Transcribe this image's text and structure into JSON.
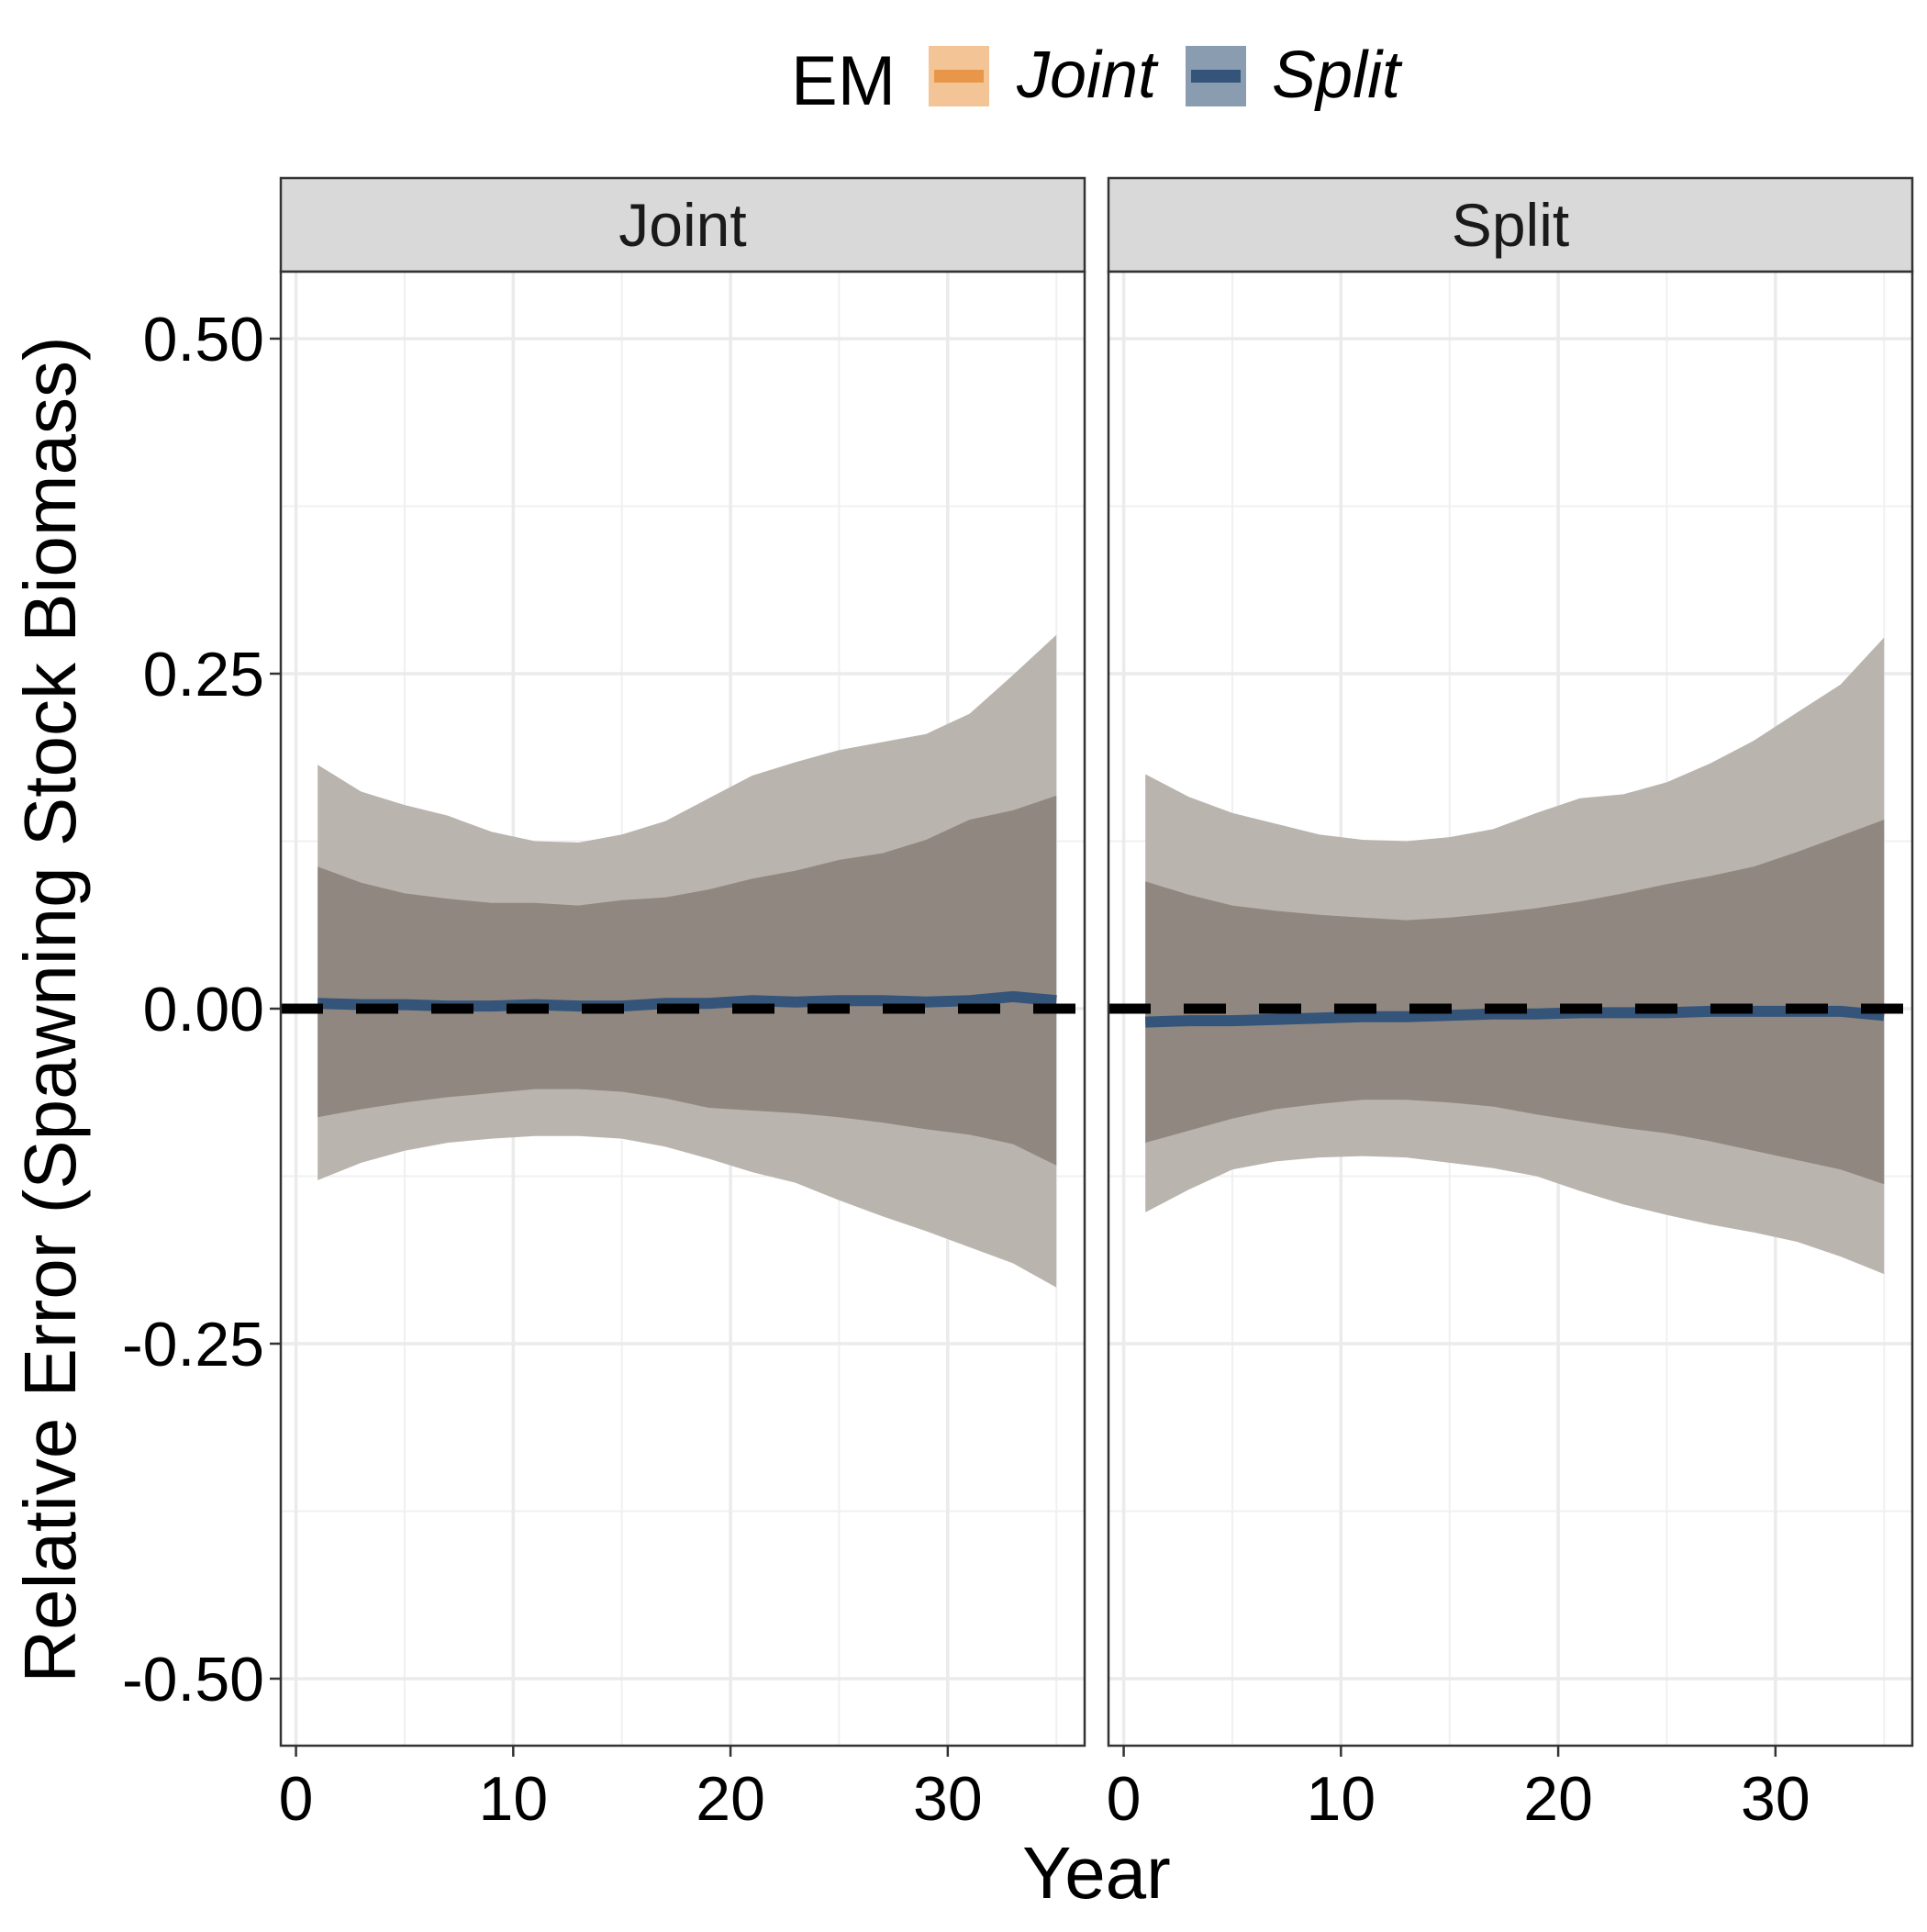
{
  "chart_data": {
    "type": "area",
    "xlabel": "Year",
    "ylabel": "Relative Error (Spawning Stock Biomass)",
    "xlim": [
      -0.7,
      36.3
    ],
    "ylim": [
      -0.55,
      0.55
    ],
    "x_ticks": [
      0,
      10,
      20,
      30
    ],
    "y_ticks": [
      -0.5,
      -0.25,
      0,
      0.25,
      0.5
    ],
    "x_tick_labels": [
      "0",
      "10",
      "20",
      "30"
    ],
    "y_tick_labels": [
      "-0.50",
      "-0.25",
      "0.00",
      "0.25",
      "0.50"
    ],
    "grid": true,
    "reference_line": {
      "y": 0,
      "style": "dashed",
      "color": "#000000"
    },
    "legend": {
      "title": "EM",
      "position": "top",
      "entries": [
        {
          "name": "Joint",
          "line_color": "#e8974a",
          "fill_color": "#f3c596"
        },
        {
          "name": "Split",
          "line_color": "#34547a",
          "fill_color": "#8a9cb0"
        }
      ]
    },
    "band_colors": {
      "outer": "#bab4ae",
      "inner": "#908780"
    },
    "panels": [
      {
        "strip_label": "Joint",
        "x": [
          1,
          3,
          5,
          7,
          9,
          11,
          13,
          15,
          17,
          19,
          21,
          23,
          25,
          27,
          29,
          31,
          33,
          35
        ],
        "median": [
          0.004,
          0.003,
          0.003,
          0.002,
          0.002,
          0.003,
          0.002,
          0.002,
          0.004,
          0.004,
          0.006,
          0.005,
          0.006,
          0.006,
          0.005,
          0.006,
          0.009,
          0.006
        ],
        "inner_upper": [
          0.106,
          0.094,
          0.086,
          0.082,
          0.079,
          0.079,
          0.077,
          0.081,
          0.083,
          0.089,
          0.097,
          0.103,
          0.111,
          0.116,
          0.126,
          0.141,
          0.148,
          0.159
        ],
        "inner_lower": [
          -0.081,
          -0.075,
          -0.07,
          -0.066,
          -0.063,
          -0.06,
          -0.06,
          -0.062,
          -0.067,
          -0.074,
          -0.076,
          -0.078,
          -0.081,
          -0.085,
          -0.09,
          -0.094,
          -0.101,
          -0.117
        ],
        "outer_upper": [
          0.182,
          0.162,
          0.152,
          0.144,
          0.132,
          0.125,
          0.124,
          0.13,
          0.14,
          0.157,
          0.174,
          0.184,
          0.193,
          0.199,
          0.205,
          0.22,
          0.249,
          0.279
        ],
        "outer_lower": [
          -0.128,
          -0.115,
          -0.106,
          -0.1,
          -0.097,
          -0.095,
          -0.095,
          -0.097,
          -0.103,
          -0.112,
          -0.122,
          -0.13,
          -0.143,
          -0.155,
          -0.166,
          -0.178,
          -0.19,
          -0.208
        ]
      },
      {
        "strip_label": "Split",
        "x": [
          1,
          3,
          5,
          7,
          9,
          11,
          13,
          15,
          17,
          19,
          21,
          23,
          25,
          27,
          29,
          31,
          33,
          35
        ],
        "median": [
          -0.01,
          -0.009,
          -0.009,
          -0.008,
          -0.007,
          -0.006,
          -0.006,
          -0.005,
          -0.004,
          -0.004,
          -0.003,
          -0.003,
          -0.003,
          -0.002,
          -0.002,
          -0.002,
          -0.002,
          -0.005
        ],
        "inner_upper": [
          0.095,
          0.085,
          0.077,
          0.073,
          0.07,
          0.068,
          0.066,
          0.068,
          0.071,
          0.075,
          0.08,
          0.086,
          0.093,
          0.099,
          0.106,
          0.117,
          0.129,
          0.141
        ],
        "inner_lower": [
          -0.1,
          -0.091,
          -0.082,
          -0.075,
          -0.071,
          -0.068,
          -0.068,
          -0.07,
          -0.073,
          -0.079,
          -0.084,
          -0.089,
          -0.093,
          -0.099,
          -0.106,
          -0.113,
          -0.12,
          -0.131
        ],
        "outer_upper": [
          0.175,
          0.158,
          0.146,
          0.138,
          0.13,
          0.126,
          0.125,
          0.128,
          0.134,
          0.146,
          0.157,
          0.16,
          0.169,
          0.183,
          0.2,
          0.221,
          0.242,
          0.277
        ],
        "outer_lower": [
          -0.152,
          -0.135,
          -0.12,
          -0.114,
          -0.111,
          -0.11,
          -0.111,
          -0.115,
          -0.119,
          -0.125,
          -0.136,
          -0.146,
          -0.154,
          -0.161,
          -0.167,
          -0.174,
          -0.185,
          -0.198
        ]
      }
    ]
  }
}
